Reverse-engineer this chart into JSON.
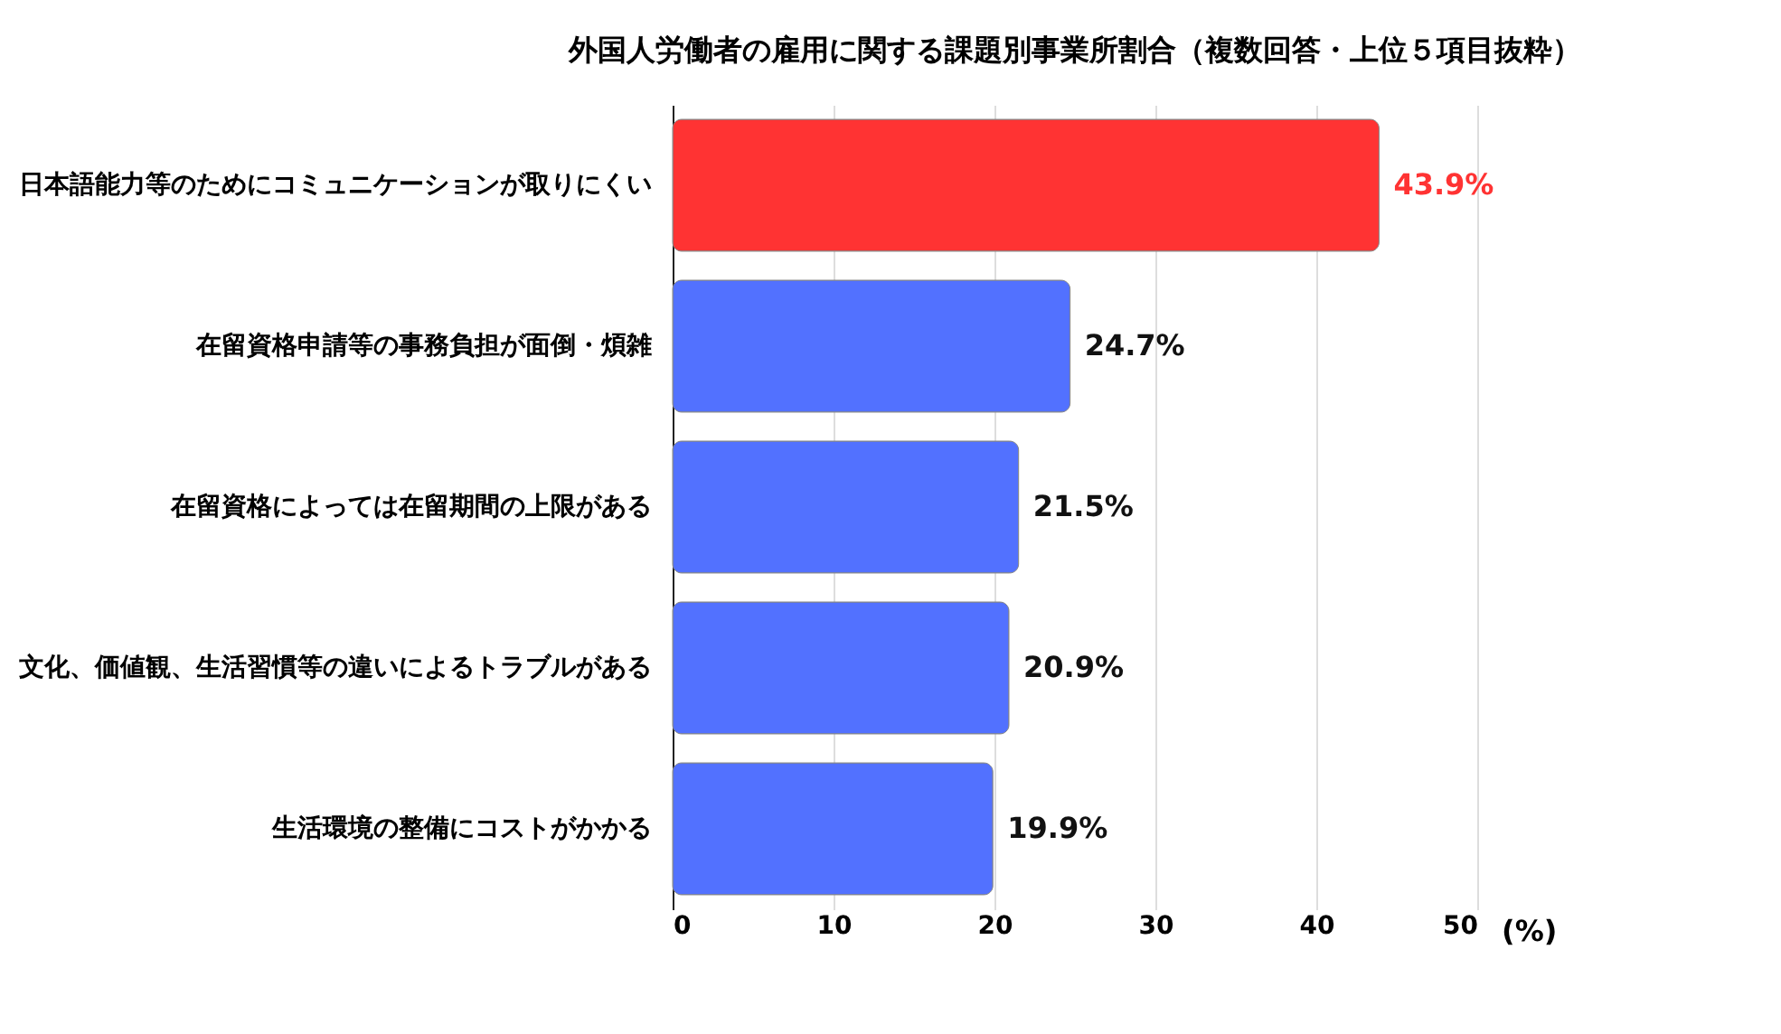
{
  "chart_data": {
    "type": "bar",
    "orientation": "horizontal",
    "title": "外国人労働者の雇用に関する課題別事業所割合（複数回答・上位５項目抜粋）",
    "xlabel": "(%)",
    "categories": [
      "日本語能力等のためにコミュニケーションが取りにくい",
      "在留資格申請等の事務負担が面倒・煩雑",
      "在留資格によっては在留期間の上限がある",
      "文化、価値観、生活習慣等の違いによるトラブルがある",
      "生活環境の整備にコストがかかる"
    ],
    "values": [
      43.9,
      24.7,
      21.5,
      20.9,
      19.9
    ],
    "colors": [
      "#ff3333",
      "#5271ff",
      "#5271ff",
      "#5271ff",
      "#5271ff"
    ],
    "value_labels": [
      "43.9%",
      "24.7%",
      "21.5%",
      "20.9%",
      "19.9%"
    ],
    "xlim": [
      0,
      50
    ],
    "xticks": [
      0,
      10,
      20,
      30,
      40,
      50
    ],
    "grid": "x"
  }
}
